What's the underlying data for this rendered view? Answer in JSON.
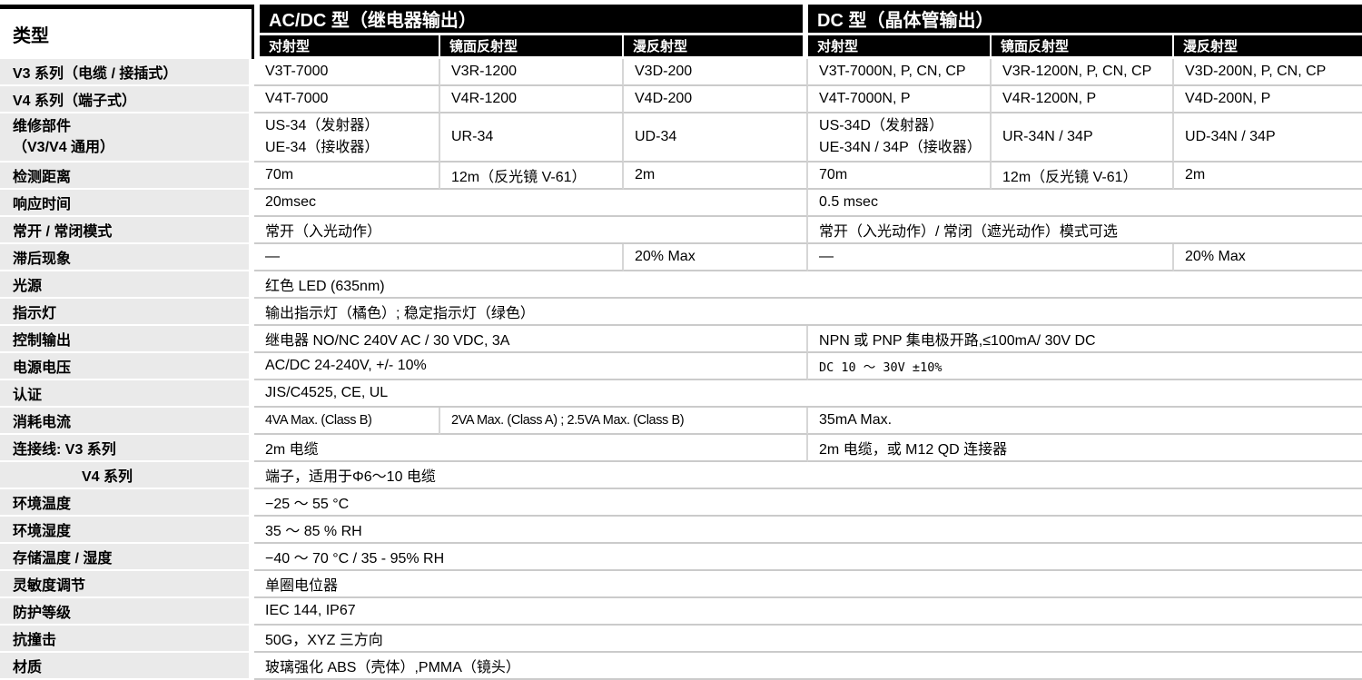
{
  "table": {
    "corner_label": "类型",
    "groups": [
      {
        "label": "AC/DC 型（继电器输出）"
      },
      {
        "label": "DC 型（晶体管输出）"
      }
    ],
    "subheaders": [
      "对射型",
      "镜面反射型",
      "漫反射型",
      "对射型",
      "镜面反射型",
      "漫反射型"
    ],
    "header_bg": "#000000",
    "header_text_color": "#ffffff",
    "label_bg": "#eaeaea",
    "rows": [
      {
        "label": "V3 系列（电缆 / 接插式）",
        "cells": [
          {
            "t": "V3T-7000",
            "s": 1
          },
          {
            "t": "V3R-1200",
            "s": 1
          },
          {
            "t": "V3D-200",
            "s": 1
          },
          {
            "t": "V3T-7000N, P, CN, CP",
            "s": 1
          },
          {
            "t": "V3R-1200N, P, CN, CP",
            "s": 1
          },
          {
            "t": "V3D-200N, P, CN, CP",
            "s": 1
          }
        ]
      },
      {
        "label": "V4 系列（端子式）",
        "cells": [
          {
            "t": "V4T-7000",
            "s": 1
          },
          {
            "t": "V4R-1200",
            "s": 1
          },
          {
            "t": "V4D-200",
            "s": 1
          },
          {
            "t": "V4T-7000N, P",
            "s": 1
          },
          {
            "t": "V4R-1200N, P",
            "s": 1
          },
          {
            "t": "V4D-200N, P",
            "s": 1
          }
        ]
      },
      {
        "label": "维修部件",
        "label2": "（V3/V4 通用）",
        "cells": [
          {
            "lines": [
              "US-34（发射器）",
              "UE-34（接收器）"
            ],
            "s": 1
          },
          {
            "t": "UR-34",
            "s": 1
          },
          {
            "t": "UD-34",
            "s": 1
          },
          {
            "lines": [
              "US-34D（发射器）",
              "UE-34N / 34P（接收器）"
            ],
            "s": 1
          },
          {
            "t": "UR-34N / 34P",
            "s": 1
          },
          {
            "t": "UD-34N / 34P",
            "s": 1
          }
        ]
      },
      {
        "label": "检测距离",
        "cells": [
          {
            "t": "70m",
            "s": 1
          },
          {
            "t": "12m（反光镜 V-61）",
            "s": 1
          },
          {
            "t": "2m",
            "s": 1
          },
          {
            "t": "70m",
            "s": 1
          },
          {
            "t": "12m（反光镜 V-61）",
            "s": 1
          },
          {
            "t": "2m",
            "s": 1
          }
        ]
      },
      {
        "label": "响应时间",
        "cells": [
          {
            "t": "20msec",
            "s": 3
          },
          {
            "t": "0.5 msec",
            "s": 3
          }
        ]
      },
      {
        "label": "常开 / 常闭模式",
        "cells": [
          {
            "t": "常开（入光动作）",
            "s": 3
          },
          {
            "t": "常开（入光动作）/ 常闭（遮光动作）模式可选",
            "s": 3
          }
        ]
      },
      {
        "label": "滞后现象",
        "cells": [
          {
            "t": "—",
            "s": 2
          },
          {
            "t": "20% Max",
            "s": 1
          },
          {
            "t": "—",
            "s": 2
          },
          {
            "t": "20% Max",
            "s": 1
          }
        ]
      },
      {
        "label": "光源",
        "cells": [
          {
            "t": "红色 LED (635nm)",
            "s": 6
          }
        ]
      },
      {
        "label": "指示灯",
        "cells": [
          {
            "t": "输出指示灯（橘色）; 稳定指示灯（绿色）",
            "s": 6
          }
        ]
      },
      {
        "label": "控制输出",
        "cells": [
          {
            "t": "继电器 NO/NC  240V AC / 30 VDC, 3A",
            "s": 3
          },
          {
            "t": "NPN 或 PNP 集电极开路,≤100mA/ 30V DC",
            "s": 3
          }
        ]
      },
      {
        "label": "电源电压",
        "cells": [
          {
            "t": "AC/DC 24-240V, +/- 10%",
            "s": 3
          },
          {
            "t": "DC 10 ～ 30V ±10%",
            "s": 3,
            "cls": "cond"
          }
        ]
      },
      {
        "label": "认证",
        "cells": [
          {
            "t": "JIS/C4525,  CE,  UL",
            "s": 6
          }
        ]
      },
      {
        "label": "消耗电流",
        "cells": [
          {
            "t": "4VA Max. (Class B)",
            "s": 1,
            "cls": "cond2"
          },
          {
            "t": "2VA Max. (Class A) ;  2.5VA Max. (Class B)",
            "s": 2,
            "cls": "cond2"
          },
          {
            "t": "35mA Max.",
            "s": 3
          }
        ]
      },
      {
        "label": "连接线: V3 系列",
        "cells": [
          {
            "t": "2m 电缆",
            "s": 3
          },
          {
            "t": "2m 电缆，或 M12 QD 连接器",
            "s": 3
          }
        ]
      },
      {
        "label": "V4 系列",
        "indent": true,
        "cells": [
          {
            "t": "端子，适用于Φ6～10 电缆",
            "s": 6
          }
        ]
      },
      {
        "label": "环境温度",
        "cells": [
          {
            "t": "−25 ～ 55 °C",
            "s": 6
          }
        ]
      },
      {
        "label": "环境湿度",
        "cells": [
          {
            "t": "35 ～ 85 % RH",
            "s": 6
          }
        ]
      },
      {
        "label": "存储温度 / 湿度",
        "cells": [
          {
            "t": "−40 ～ 70 °C / 35 - 95% RH",
            "s": 6
          }
        ]
      },
      {
        "label": "灵敏度调节",
        "cells": [
          {
            "t": "单圈电位器",
            "s": 6
          }
        ]
      },
      {
        "label": "防护等级",
        "cells": [
          {
            "t": "IEC 144,  IP67",
            "s": 6
          }
        ]
      },
      {
        "label": "抗撞击",
        "cells": [
          {
            "t": "50G，XYZ 三方向",
            "s": 6
          }
        ]
      },
      {
        "label": "材质",
        "cells": [
          {
            "t": "玻璃强化 ABS（壳体）,PMMA（镜头）",
            "s": 6
          }
        ]
      }
    ]
  }
}
